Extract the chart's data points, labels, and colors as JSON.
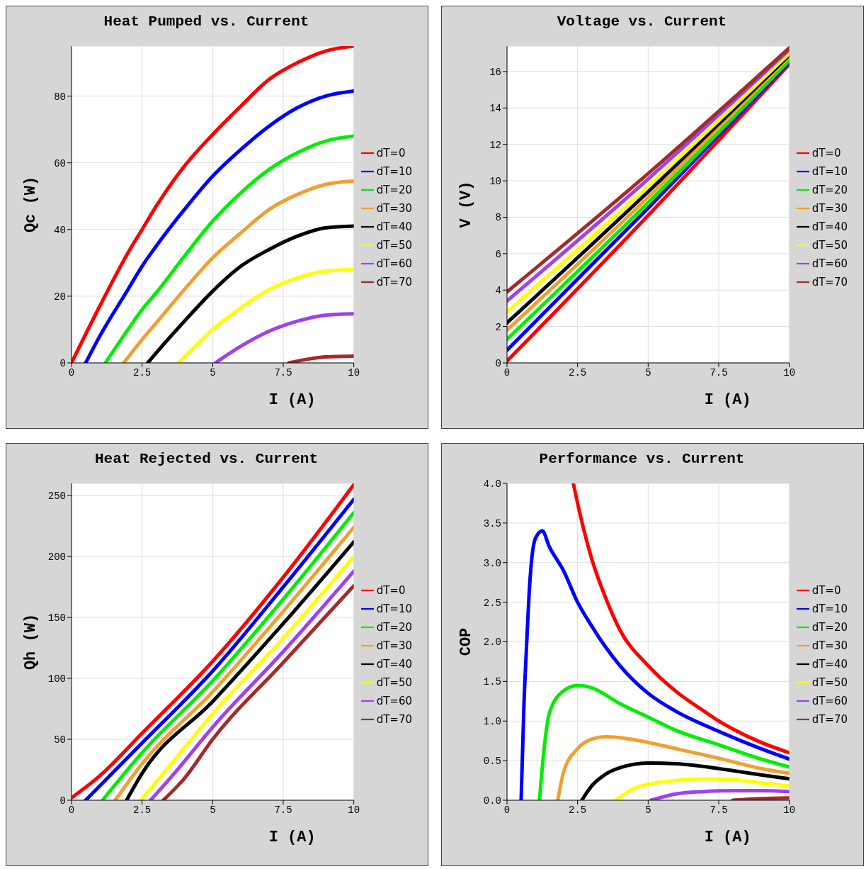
{
  "chart_data": [
    {
      "type": "line",
      "title": "Heat Pumped vs. Current",
      "xlabel": "I (A)",
      "ylabel": "Qc (W)",
      "xlim": [
        0,
        10
      ],
      "xticks": [
        0,
        2.5,
        5,
        7.5,
        10
      ],
      "ylim": [
        0,
        95
      ],
      "yticks": [
        0,
        20,
        40,
        60,
        80
      ],
      "grid": true,
      "legend": "right",
      "line_style": "solid",
      "series": [
        {
          "name": "dT=0",
          "color": "#ff0000",
          "x": [
            0,
            1,
            2,
            2.5,
            3,
            4,
            5,
            6,
            7,
            8,
            9,
            10
          ],
          "values": [
            0,
            17,
            33,
            40,
            47,
            59,
            68.5,
            77,
            85,
            90,
            93.5,
            95
          ]
        },
        {
          "name": "dT=10",
          "color": "#0000ff",
          "x": [
            0.5,
            1,
            2,
            2.5,
            3,
            4,
            5,
            6,
            7,
            8,
            9,
            10
          ],
          "values": [
            0,
            8,
            22,
            29,
            35,
            46,
            56,
            64,
            71,
            76.5,
            80,
            81.5
          ]
        },
        {
          "name": "dT=20",
          "color": "#00ee00",
          "x": [
            1.2,
            2,
            2.5,
            3,
            4,
            5,
            6,
            7,
            8,
            9,
            10
          ],
          "values": [
            0,
            10,
            16,
            21,
            32,
            42.5,
            51,
            58,
            63,
            66.5,
            68
          ]
        },
        {
          "name": "dT=30",
          "color": "#f0a030",
          "x": [
            1.85,
            2.5,
            3,
            4,
            5,
            6,
            7,
            8,
            9,
            10
          ],
          "values": [
            0,
            7,
            12,
            22,
            31.5,
            39,
            46,
            50.5,
            53.5,
            54.5
          ]
        },
        {
          "name": "dT=40",
          "color": "#000000",
          "x": [
            2.7,
            3,
            4,
            5,
            6,
            7,
            8,
            9,
            10
          ],
          "values": [
            0,
            3,
            12.5,
            21.5,
            29,
            34,
            38,
            40.5,
            41
          ]
        },
        {
          "name": "dT=50",
          "color": "#ffff00",
          "x": [
            3.8,
            4.5,
            5,
            6,
            7,
            8,
            9,
            10
          ],
          "values": [
            0,
            6,
            10,
            16.5,
            22,
            25.5,
            27.5,
            28
          ]
        },
        {
          "name": "dT=60",
          "color": "#a040f0",
          "x": [
            5.1,
            6,
            7,
            8,
            9,
            10
          ],
          "values": [
            0,
            5,
            9.5,
            12.5,
            14.3,
            14.7
          ]
        },
        {
          "name": "dT=70",
          "color": "#a52a2a",
          "x": [
            7.7,
            8.5,
            9,
            10
          ],
          "values": [
            0,
            1.3,
            1.8,
            2
          ]
        }
      ]
    },
    {
      "type": "line",
      "title": "Voltage vs. Current",
      "xlabel": "I (A)",
      "ylabel": "V (V)",
      "xlim": [
        0,
        10
      ],
      "xticks": [
        0,
        2.5,
        5,
        7.5,
        10
      ],
      "ylim": [
        0,
        17.4
      ],
      "yticks": [
        0,
        2,
        4,
        6,
        8,
        10,
        12,
        14,
        16
      ],
      "grid": true,
      "legend": "right",
      "line_style": "solid",
      "series": [
        {
          "name": "dT=0",
          "color": "#ff0000",
          "x": [
            0,
            5,
            10
          ],
          "values": [
            0.1,
            8.1,
            16.4
          ]
        },
        {
          "name": "dT=10",
          "color": "#0000ff",
          "x": [
            0,
            5,
            10
          ],
          "values": [
            0.7,
            8.5,
            16.5
          ]
        },
        {
          "name": "dT=20",
          "color": "#00ee00",
          "x": [
            0,
            5,
            10
          ],
          "values": [
            1.3,
            8.8,
            16.6
          ]
        },
        {
          "name": "dT=30",
          "color": "#f0a030",
          "x": [
            0,
            5,
            10
          ],
          "values": [
            1.8,
            9.1,
            16.8
          ]
        },
        {
          "name": "dT=40",
          "color": "#000000",
          "x": [
            0,
            5,
            10
          ],
          "values": [
            2.2,
            9.4,
            16.9
          ]
        },
        {
          "name": "dT=50",
          "color": "#ffff00",
          "x": [
            0,
            5,
            10
          ],
          "values": [
            2.8,
            9.7,
            17
          ]
        },
        {
          "name": "dT=60",
          "color": "#a040f0",
          "x": [
            0,
            5,
            10
          ],
          "values": [
            3.4,
            10.1,
            17.2
          ]
        },
        {
          "name": "dT=70",
          "color": "#a52a2a",
          "x": [
            0,
            5,
            10
          ],
          "values": [
            3.9,
            10.4,
            17.3
          ]
        }
      ]
    },
    {
      "type": "line",
      "title": "Heat Rejected vs. Current",
      "xlabel": "I (A)",
      "ylabel": "Qh (W)",
      "xlim": [
        0,
        10
      ],
      "xticks": [
        0,
        2.5,
        5,
        7.5,
        10
      ],
      "ylim": [
        0,
        260
      ],
      "yticks": [
        0,
        50,
        100,
        150,
        200,
        250
      ],
      "grid": true,
      "legend": "right",
      "line_style": "solid",
      "series": [
        {
          "name": "dT=0",
          "color": "#ff0000",
          "x": [
            0,
            1,
            2.5,
            5,
            7.5,
            10
          ],
          "values": [
            2,
            20,
            55,
            114,
            183,
            259
          ]
        },
        {
          "name": "dT=10",
          "color": "#0000ff",
          "x": [
            0.5,
            2.5,
            5,
            7.5,
            10
          ],
          "values": [
            0,
            47,
            106,
            175,
            247
          ]
        },
        {
          "name": "dT=20",
          "color": "#00ee00",
          "x": [
            1.1,
            2.5,
            5,
            7.5,
            10
          ],
          "values": [
            0,
            39,
            98,
            165,
            236
          ]
        },
        {
          "name": "dT=30",
          "color": "#f0a030",
          "x": [
            1.55,
            2.5,
            5,
            7.5,
            10
          ],
          "values": [
            0,
            30,
            89,
            155,
            224
          ]
        },
        {
          "name": "dT=40",
          "color": "#000000",
          "x": [
            1.95,
            2.5,
            5,
            7.5,
            10
          ],
          "values": [
            0,
            22,
            81,
            145,
            212
          ]
        },
        {
          "name": "dT=50",
          "color": "#ffff00",
          "x": [
            2.45,
            3.5,
            5,
            7.5,
            10
          ],
          "values": [
            0,
            29,
            71,
            133,
            200
          ]
        },
        {
          "name": "dT=60",
          "color": "#a040f0",
          "x": [
            2.8,
            3.75,
            5,
            7.5,
            10
          ],
          "values": [
            0,
            25,
            60,
            122,
            188
          ]
        },
        {
          "name": "dT=70",
          "color": "#a52a2a",
          "x": [
            3.25,
            4,
            5,
            7.5,
            10
          ],
          "values": [
            0,
            18,
            50,
            113,
            176
          ]
        }
      ]
    },
    {
      "type": "line",
      "title": "Performance vs. Current",
      "xlabel": "I (A)",
      "ylabel": "COP",
      "xlim": [
        0,
        10
      ],
      "xticks": [
        0,
        2.5,
        5,
        7.5,
        10
      ],
      "ylim": [
        0,
        4
      ],
      "yticks": [
        {
          "value": 0,
          "label": "0.0"
        },
        {
          "value": 0.5,
          "label": "0.5"
        },
        {
          "value": 1,
          "label": "1.0"
        },
        {
          "value": 1.5,
          "label": "1.5"
        },
        {
          "value": 2,
          "label": "2.0"
        },
        {
          "value": 2.5,
          "label": "2.5"
        },
        {
          "value": 3,
          "label": "3.0"
        },
        {
          "value": 3.5,
          "label": "3.5"
        },
        {
          "value": 4,
          "label": "4.0"
        }
      ],
      "grid": true,
      "legend": "right",
      "line_style": "solid",
      "series": [
        {
          "name": "dT=0",
          "color": "#ff0000",
          "x": [
            2.35,
            2.5,
            3,
            3.5,
            4,
            5,
            6,
            7,
            7.5,
            8,
            9,
            10
          ],
          "values": [
            4,
            3.75,
            3.05,
            2.55,
            2.15,
            1.7,
            1.37,
            1.12,
            1,
            0.9,
            0.73,
            0.6
          ]
        },
        {
          "name": "dT=10",
          "color": "#0000ff",
          "x": [
            0.5,
            0.6,
            0.7,
            0.8,
            1,
            1.25,
            1.5,
            2,
            2.5,
            3,
            3.5,
            4,
            5,
            6,
            7.5,
            9,
            10
          ],
          "values": [
            0,
            1.2,
            2,
            2.7,
            3.3,
            3.4,
            3.2,
            2.9,
            2.5,
            2.2,
            1.93,
            1.7,
            1.35,
            1.12,
            0.87,
            0.65,
            0.52
          ]
        },
        {
          "name": "dT=20",
          "color": "#00ee00",
          "x": [
            1.15,
            1.3,
            1.5,
            2,
            2.5,
            3,
            4,
            5,
            6,
            7.5,
            9,
            10
          ],
          "values": [
            0,
            0.6,
            1.1,
            1.38,
            1.45,
            1.42,
            1.22,
            1.05,
            0.88,
            0.7,
            0.52,
            0.42
          ]
        },
        {
          "name": "dT=30",
          "color": "#f0a030",
          "x": [
            1.8,
            2,
            2.5,
            3,
            3.5,
            4,
            5,
            6,
            7.5,
            9,
            10
          ],
          "values": [
            0,
            0.35,
            0.65,
            0.77,
            0.8,
            0.79,
            0.73,
            0.65,
            0.53,
            0.4,
            0.34
          ]
        },
        {
          "name": "dT=40",
          "color": "#000000",
          "x": [
            2.65,
            3,
            3.5,
            4,
            5,
            6,
            7.5,
            9,
            10
          ],
          "values": [
            0,
            0.18,
            0.33,
            0.41,
            0.47,
            0.46,
            0.4,
            0.32,
            0.27
          ]
        },
        {
          "name": "dT=50",
          "color": "#ffff00",
          "x": [
            3.85,
            4.5,
            5,
            6,
            7,
            8,
            9,
            10
          ],
          "values": [
            0,
            0.15,
            0.2,
            0.25,
            0.27,
            0.26,
            0.22,
            0.18
          ]
        },
        {
          "name": "dT=60",
          "color": "#a040f0",
          "x": [
            5.1,
            6,
            7,
            8,
            9,
            10
          ],
          "values": [
            0,
            0.08,
            0.11,
            0.12,
            0.12,
            0.11
          ]
        },
        {
          "name": "dT=70",
          "color": "#a52a2a",
          "x": [
            8,
            9,
            10
          ],
          "values": [
            0,
            0.02,
            0.03
          ]
        }
      ]
    }
  ]
}
